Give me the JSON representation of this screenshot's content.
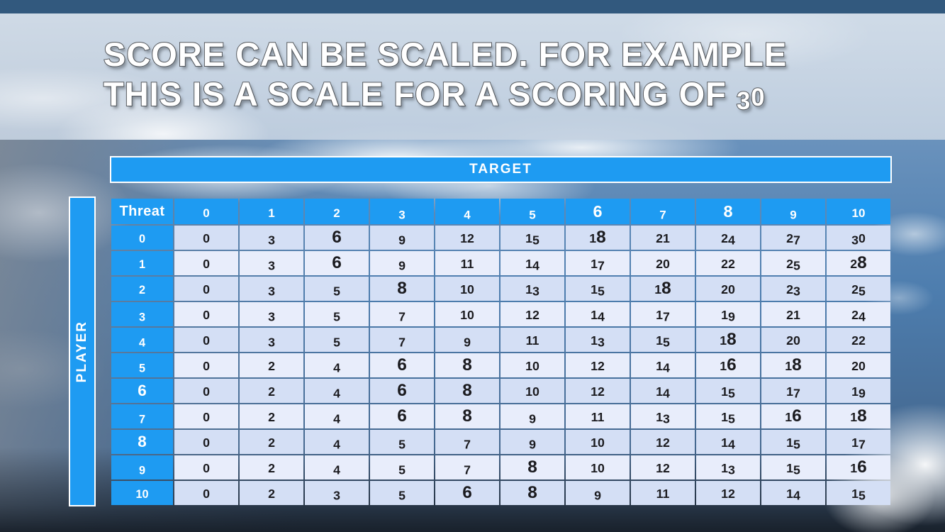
{
  "colors": {
    "accent_blue": "#1E9BF2",
    "row_shade_a": "#D4DFF5",
    "row_shade_b": "#E8EDFB",
    "top_bar": "#32597E",
    "body_text": "#1B1B1F"
  },
  "slide": {
    "title_line1": "SCORE CAN BE SCALED. FOR EXAMPLE",
    "title_line2": "THIS IS A SCALE FOR A SCORING OF 30"
  },
  "table": {
    "target_label": "TARGET",
    "player_label": "PLAYER",
    "corner_label": "Threat",
    "column_headers": [
      "0",
      "1",
      "2",
      "3",
      "4",
      "5",
      "6",
      "7",
      "8",
      "9",
      "10"
    ],
    "row_headers": [
      "0",
      "1",
      "2",
      "3",
      "4",
      "5",
      "6",
      "7",
      "8",
      "9",
      "10"
    ],
    "rows": [
      [
        0,
        3,
        6,
        9,
        12,
        15,
        18,
        21,
        24,
        27,
        30
      ],
      [
        0,
        3,
        6,
        9,
        11,
        14,
        17,
        20,
        22,
        25,
        28
      ],
      [
        0,
        3,
        5,
        8,
        10,
        13,
        15,
        18,
        20,
        23,
        25
      ],
      [
        0,
        3,
        5,
        7,
        10,
        12,
        14,
        17,
        19,
        21,
        24
      ],
      [
        0,
        3,
        5,
        7,
        9,
        11,
        13,
        15,
        18,
        20,
        22
      ],
      [
        0,
        2,
        4,
        6,
        8,
        10,
        12,
        14,
        16,
        18,
        20
      ],
      [
        0,
        2,
        4,
        6,
        8,
        10,
        12,
        14,
        15,
        17,
        19
      ],
      [
        0,
        2,
        4,
        6,
        8,
        9,
        11,
        13,
        15,
        16,
        18
      ],
      [
        0,
        2,
        4,
        5,
        7,
        9,
        10,
        12,
        14,
        15,
        17
      ],
      [
        0,
        2,
        4,
        5,
        7,
        8,
        10,
        12,
        13,
        15,
        16
      ],
      [
        0,
        2,
        3,
        5,
        6,
        8,
        9,
        11,
        12,
        14,
        15
      ]
    ]
  }
}
